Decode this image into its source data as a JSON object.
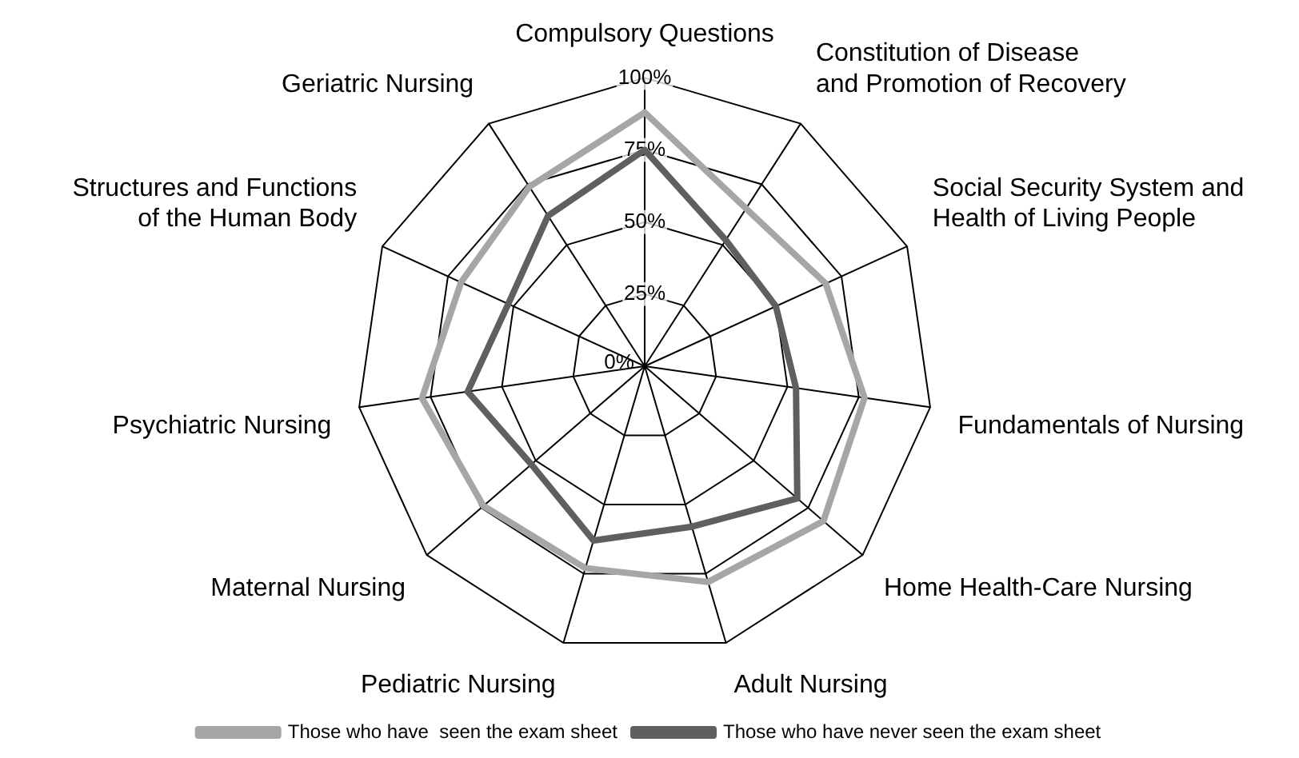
{
  "chart_data": {
    "type": "radar",
    "categories": [
      "Compulsory Questions",
      "Constitution of Disease and Promotion of Recovery",
      "Social Security System and Health of Living People",
      "Fundamentals of Nursing",
      "Home Health-Care Nursing",
      "Adult Nursing",
      "Pediatric Nursing",
      "Maternal Nursing",
      "Psychiatric Nursing",
      "Structures and Functions of the Human Body",
      "Geriatric Nursing"
    ],
    "series": [
      {
        "name": "Those who have  seen the exam sheet",
        "color": "#a6a6a6",
        "values": [
          88,
          65,
          69,
          77,
          82,
          78,
          73,
          74,
          78,
          70,
          74
        ]
      },
      {
        "name": "Those who have never seen the exam sheet",
        "color": "#5f5f5f",
        "values": [
          75,
          52,
          50,
          53,
          70,
          58,
          63,
          52,
          62,
          52,
          62
        ]
      }
    ],
    "ylim": [
      0,
      100
    ],
    "yticks": [
      {
        "value": 0,
        "label": "0%"
      },
      {
        "value": 25,
        "label": "25%"
      },
      {
        "value": 50,
        "label": "50%"
      },
      {
        "value": 75,
        "label": "75%"
      },
      {
        "value": 100,
        "label": "100%"
      }
    ],
    "grid": true,
    "legend": "bottom",
    "marker": "none",
    "line_style": "solid"
  }
}
